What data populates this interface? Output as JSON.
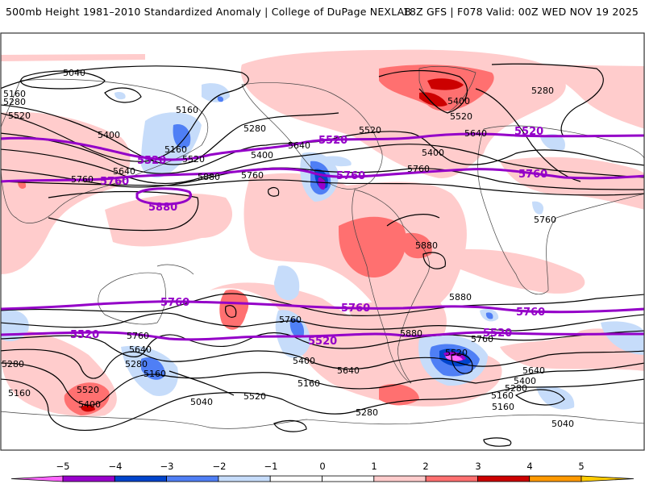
{
  "header": {
    "title_left": "500mb Height 1981–2010 Standardized Anomaly | College of DuPage NEXLAB",
    "title_right": "18Z GFS | F078 Valid: 00Z WED NOV 19 2025"
  },
  "map": {
    "field": "500mb geopotential height (dam*10 contours) with standardized anomaly shading",
    "projection": "global cylindrical",
    "contour_interval": 120,
    "highlighted_contours": [
      "5520",
      "5760",
      "5880"
    ],
    "contour_labels": [
      {
        "text": "5040",
        "region": "north-pacific / siberia"
      },
      {
        "text": "5160",
        "region": "north-asia west edge"
      },
      {
        "text": "5280",
        "region": "north-asia west edge"
      },
      {
        "text": "5520",
        "region": "central asia west edge"
      },
      {
        "text": "5400",
        "region": "central asia"
      },
      {
        "text": "5160",
        "region": "kamchatka"
      },
      {
        "text": "5160",
        "region": "east of japan"
      },
      {
        "text": "5520",
        "region": "northwest pacific"
      },
      {
        "text": "5640",
        "region": "japan"
      },
      {
        "text": "5760",
        "region": "china"
      },
      {
        "text": "5880",
        "region": "north pacific subtropics"
      },
      {
        "text": "5280",
        "region": "gulf of alaska"
      },
      {
        "text": "5400",
        "region": "northeast pacific"
      },
      {
        "text": "5640",
        "region": "pacific northwest coast"
      },
      {
        "text": "5760",
        "region": "subtropical pacific"
      },
      {
        "text": "5520",
        "region": "canada"
      },
      {
        "text": "5400",
        "region": "eastern canada"
      },
      {
        "text": "5760",
        "region": "eastern us"
      },
      {
        "text": "5400",
        "region": "greenland"
      },
      {
        "text": "5520",
        "region": "greenland"
      },
      {
        "text": "5640",
        "region": "greenland south"
      },
      {
        "text": "5280",
        "region": "arctic"
      },
      {
        "text": "5760",
        "region": "north africa"
      },
      {
        "text": "5880",
        "region": "caribbean"
      },
      {
        "text": "5880",
        "region": "brazil"
      },
      {
        "text": "5760",
        "region": "south pacific subtropics"
      },
      {
        "text": "5400",
        "region": "south pacific"
      },
      {
        "text": "5160",
        "region": "south pacific"
      },
      {
        "text": "5640",
        "region": "south pacific east"
      },
      {
        "text": "5280",
        "region": "south pacific antarctic"
      },
      {
        "text": "5880",
        "region": "chile"
      },
      {
        "text": "5760",
        "region": "south atlantic"
      },
      {
        "text": "5520",
        "region": "south atlantic"
      },
      {
        "text": "5640",
        "region": "south atlantic east"
      },
      {
        "text": "5400",
        "region": "south atlantic east"
      },
      {
        "text": "5280",
        "region": "south atlantic east"
      },
      {
        "text": "5160",
        "region": "south atlantic southeast"
      },
      {
        "text": "5160",
        "region": "south atlantic antarctic"
      },
      {
        "text": "5040",
        "region": "southern indian ocean"
      },
      {
        "text": "5280",
        "region": "southern indian ocean west"
      },
      {
        "text": "5160",
        "region": "southern indian ocean west"
      },
      {
        "text": "5520",
        "region": "southern indian ocean"
      },
      {
        "text": "5400",
        "region": "southern indian ocean"
      },
      {
        "text": "5760",
        "region": "australia"
      },
      {
        "text": "5640",
        "region": "australia south"
      },
      {
        "text": "5280",
        "region": "tasman sea"
      },
      {
        "text": "5160",
        "region": "south of new zealand"
      },
      {
        "text": "5040",
        "region": "southern ocean"
      },
      {
        "text": "5520",
        "region": "south pacific west"
      }
    ],
    "purple_labels": [
      {
        "text": "5520",
        "region": "northwest pacific"
      },
      {
        "text": "5760",
        "region": "china"
      },
      {
        "text": "5880",
        "region": "north pacific subtropics"
      },
      {
        "text": "5520",
        "region": "pacific northwest"
      },
      {
        "text": "5760",
        "region": "baja california"
      },
      {
        "text": "5520",
        "region": "north atlantic / europe"
      },
      {
        "text": "5760",
        "region": "north africa"
      },
      {
        "text": "5760",
        "region": "south pacific west"
      },
      {
        "text": "5760",
        "region": "south pacific east"
      },
      {
        "text": "5760",
        "region": "south atlantic"
      },
      {
        "text": "5520",
        "region": "southern indian ocean"
      },
      {
        "text": "5520",
        "region": "south pacific"
      },
      {
        "text": "5520",
        "region": "south atlantic"
      }
    ]
  },
  "colorbar": {
    "ticks": [
      "−5",
      "−4",
      "−3",
      "−2",
      "−1",
      "0",
      "1",
      "2",
      "3",
      "4",
      "5"
    ],
    "bins": [
      {
        "range": "< -5",
        "color": "#ff66ff"
      },
      {
        "range": "-5 to -4",
        "color": "#9900cc"
      },
      {
        "range": "-4 to -3",
        "color": "#0044cc"
      },
      {
        "range": "-3 to -2",
        "color": "#4f7ff5"
      },
      {
        "range": "-2 to -1",
        "color": "#c6dcfa"
      },
      {
        "range": "-1 to 0",
        "color": "#ffffff"
      },
      {
        "range": "0 to 1",
        "color": "#ffffff"
      },
      {
        "range": "1 to 2",
        "color": "#ffcccc"
      },
      {
        "range": "2 to 3",
        "color": "#ff7070"
      },
      {
        "range": "3 to 4",
        "color": "#cc0000"
      },
      {
        "range": "4 to 5",
        "color": "#ff9900"
      },
      {
        "range": "> 5",
        "color": "#ffcc00"
      }
    ]
  },
  "colors": {
    "contour": "#000000",
    "highlight_contour": "#9400c8",
    "frame": "#333333"
  }
}
